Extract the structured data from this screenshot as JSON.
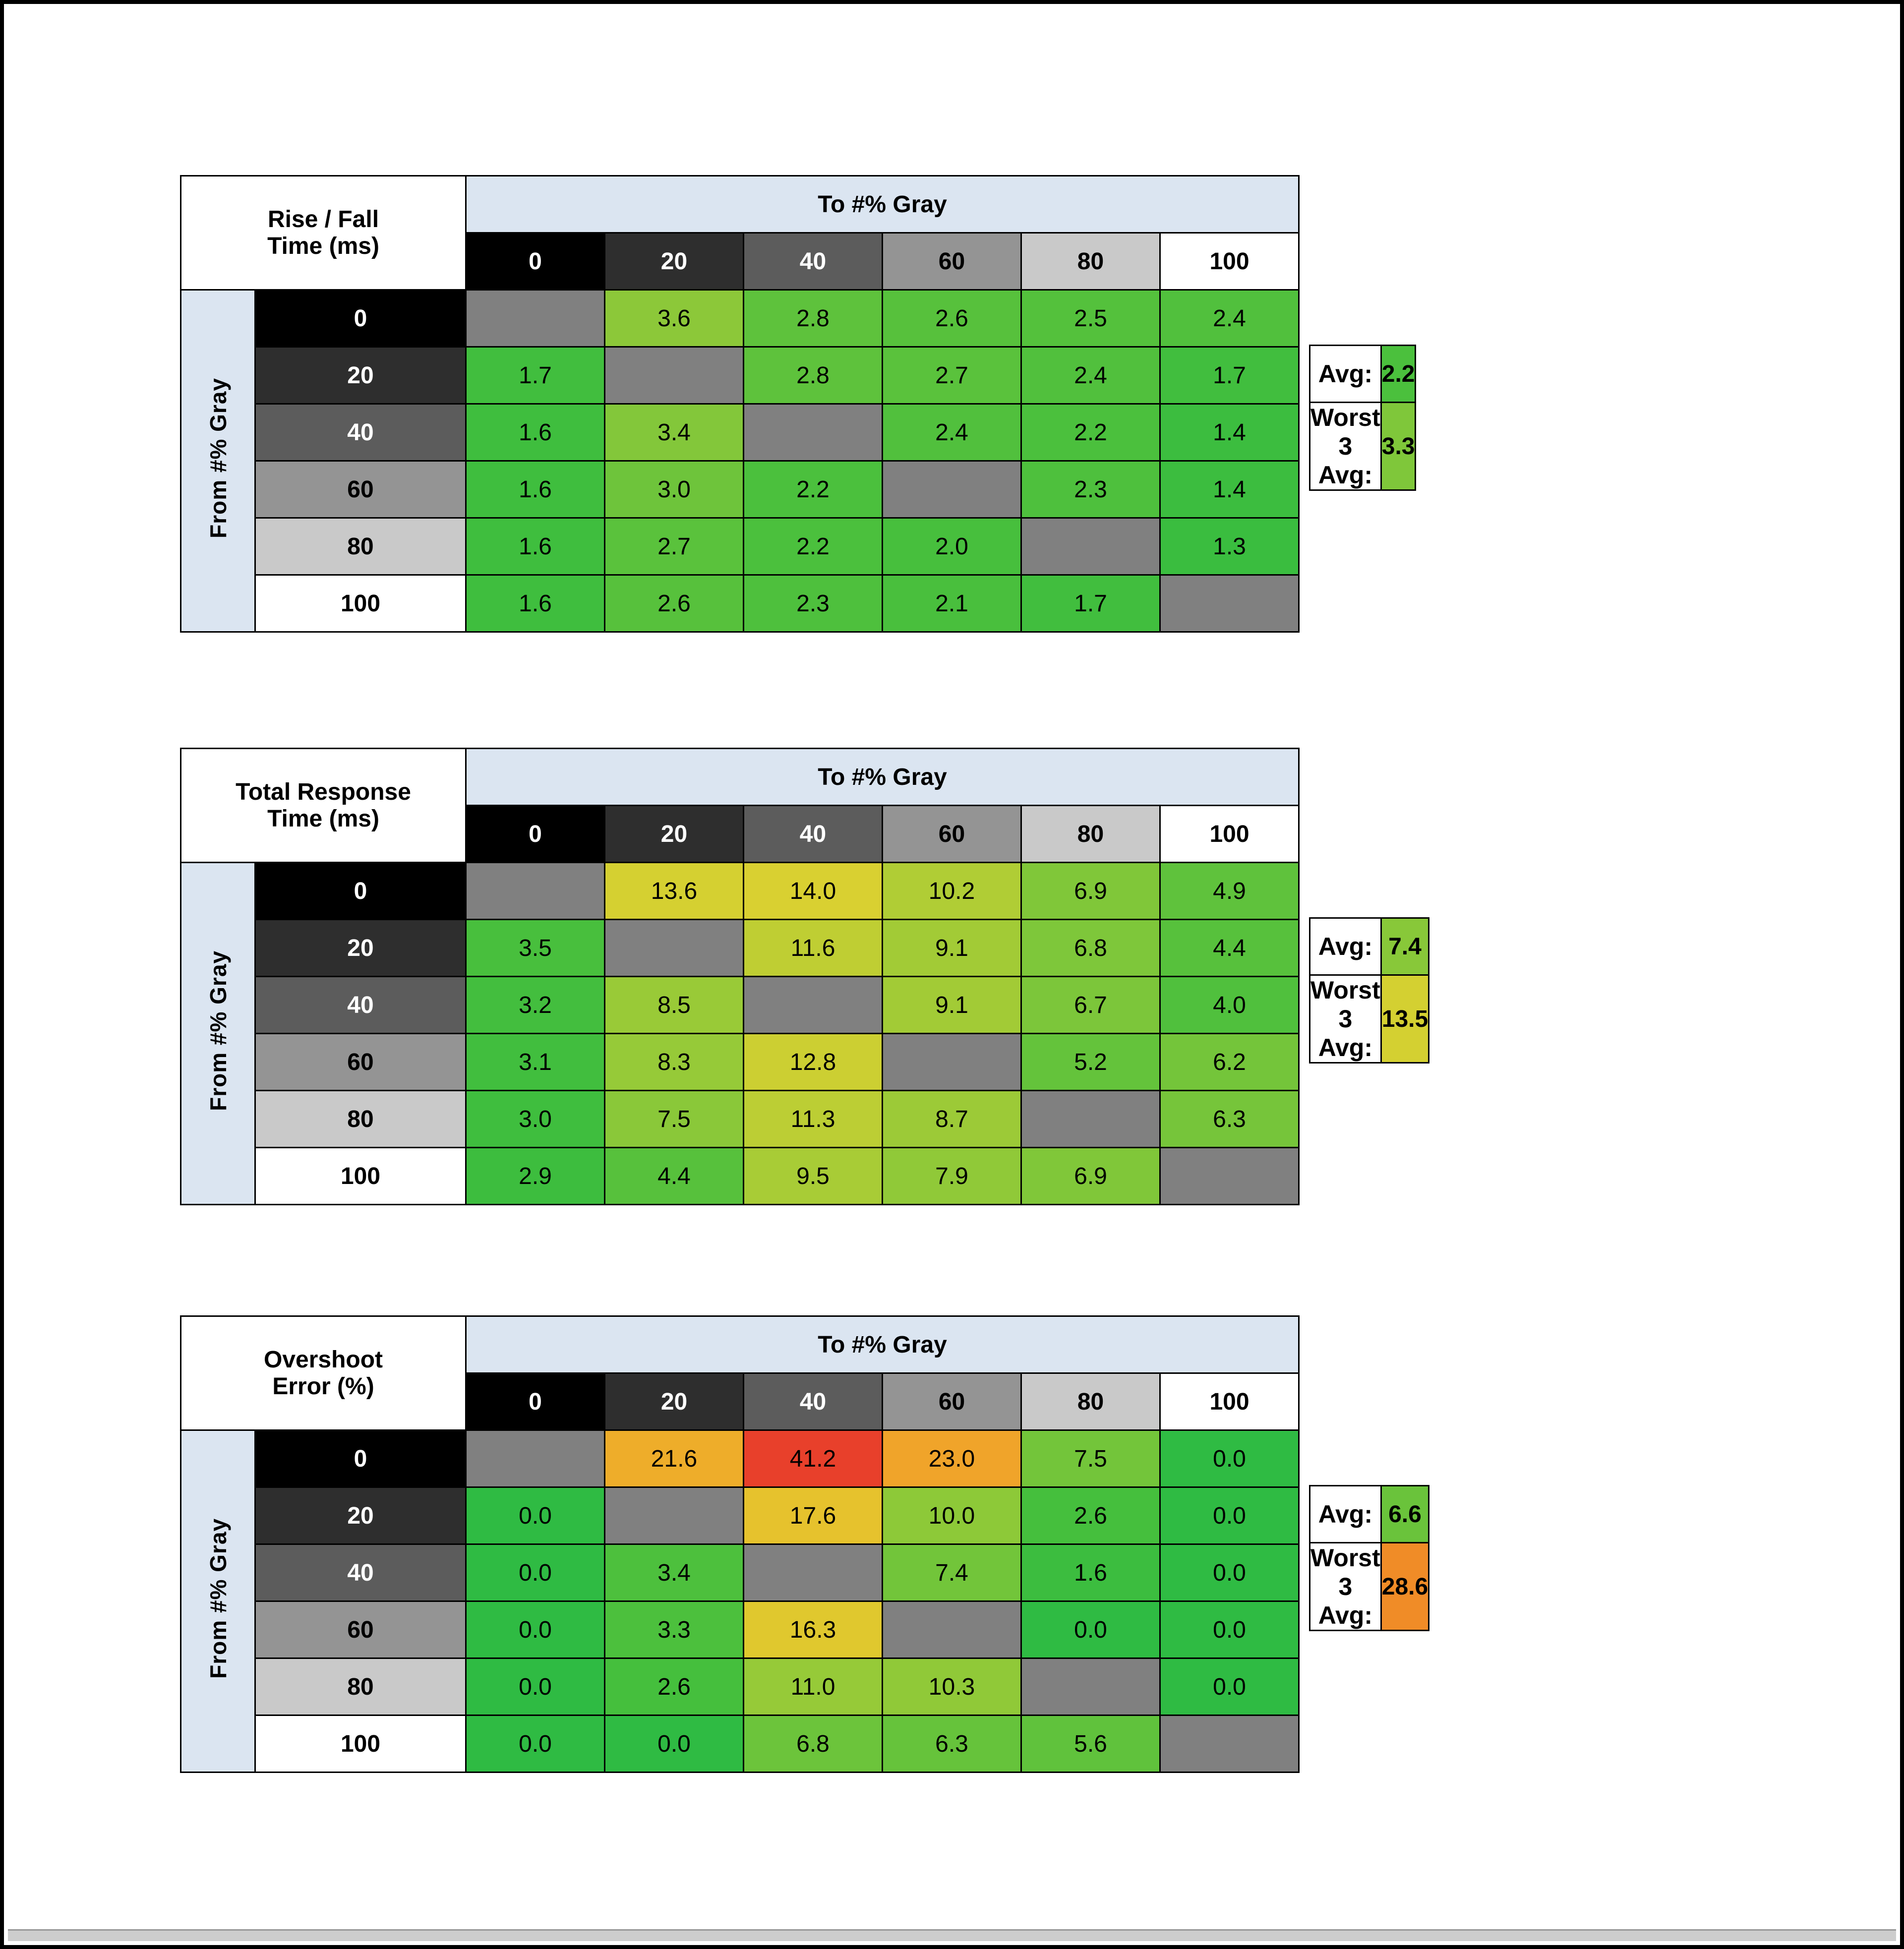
{
  "page": {
    "background": "#ffffff",
    "border_color": "#000000"
  },
  "colors": {
    "diagonal_cell": "#808080",
    "header_strip": "#dbe5f1"
  },
  "gray_headers": {
    "0": {
      "bg": "#000000",
      "fg": "#ffffff"
    },
    "20": {
      "bg": "#2e2e2e",
      "fg": "#ffffff"
    },
    "40": {
      "bg": "#5c5c5c",
      "fg": "#ffffff"
    },
    "60": {
      "bg": "#949494",
      "fg": "#000000"
    },
    "80": {
      "bg": "#c9c9c9",
      "fg": "#000000"
    },
    "100": {
      "bg": "#ffffff",
      "fg": "#000000"
    }
  },
  "scrollbar": {
    "track": "#cdcdcd",
    "edge": "#999999"
  },
  "tables": [
    {
      "id": "rise-fall-time",
      "title_line1": "Rise / Fall",
      "title_line2": "Time (ms)",
      "col_group_label": "To #% Gray",
      "row_group_label": "From #% Gray",
      "col_headers": [
        "0",
        "20",
        "40",
        "60",
        "80",
        "100"
      ],
      "row_headers": [
        "0",
        "20",
        "40",
        "60",
        "80",
        "100"
      ],
      "rows": [
        [
          null,
          {
            "v": "3.6",
            "c": "#8cc839"
          },
          {
            "v": "2.8",
            "c": "#5ec23c"
          },
          {
            "v": "2.6",
            "c": "#57c13c"
          },
          {
            "v": "2.5",
            "c": "#54c13c"
          },
          {
            "v": "2.4",
            "c": "#51c03d"
          }
        ],
        [
          {
            "v": "1.7",
            "c": "#41be3e"
          },
          null,
          {
            "v": "2.8",
            "c": "#5ec23c"
          },
          {
            "v": "2.7",
            "c": "#5ac23c"
          },
          {
            "v": "2.4",
            "c": "#51c03d"
          },
          {
            "v": "1.7",
            "c": "#41be3e"
          }
        ],
        [
          {
            "v": "1.6",
            "c": "#3fbe3e"
          },
          {
            "v": "3.4",
            "c": "#83c73a"
          },
          null,
          {
            "v": "2.4",
            "c": "#51c03d"
          },
          {
            "v": "2.2",
            "c": "#4bc03d"
          },
          {
            "v": "1.4",
            "c": "#3cbd3f"
          }
        ],
        [
          {
            "v": "1.6",
            "c": "#3fbe3e"
          },
          {
            "v": "3.0",
            "c": "#6ec43b"
          },
          {
            "v": "2.2",
            "c": "#4bc03d"
          },
          null,
          {
            "v": "2.3",
            "c": "#4ec03d"
          },
          {
            "v": "1.4",
            "c": "#3cbd3f"
          }
        ],
        [
          {
            "v": "1.6",
            "c": "#3fbe3e"
          },
          {
            "v": "2.7",
            "c": "#5ac23c"
          },
          {
            "v": "2.2",
            "c": "#4bc03d"
          },
          {
            "v": "2.0",
            "c": "#47bf3d"
          },
          null,
          {
            "v": "1.3",
            "c": "#3abd3f"
          }
        ],
        [
          {
            "v": "1.6",
            "c": "#3fbe3e"
          },
          {
            "v": "2.6",
            "c": "#57c13c"
          },
          {
            "v": "2.3",
            "c": "#4ec03d"
          },
          {
            "v": "2.1",
            "c": "#49bf3d"
          },
          {
            "v": "1.7",
            "c": "#41be3e"
          },
          null
        ]
      ],
      "avg": {
        "label": "Avg:",
        "value": "2.2",
        "color": "#4bc03d"
      },
      "worst": {
        "label": "Worst 3 Avg:",
        "value": "3.3",
        "color": "#7fc73a"
      }
    },
    {
      "id": "total-response-time",
      "title_line1": "Total Response",
      "title_line2": "Time (ms)",
      "col_group_label": "To #% Gray",
      "row_group_label": "From #% Gray",
      "col_headers": [
        "0",
        "20",
        "40",
        "60",
        "80",
        "100"
      ],
      "row_headers": [
        "0",
        "20",
        "40",
        "60",
        "80",
        "100"
      ],
      "rows": [
        [
          null,
          {
            "v": "13.6",
            "c": "#d5d031"
          },
          {
            "v": "14.0",
            "c": "#d9d031"
          },
          {
            "v": "10.2",
            "c": "#b0cd35"
          },
          {
            "v": "6.9",
            "c": "#80c739"
          },
          {
            "v": "4.9",
            "c": "#5fc23c"
          }
        ],
        [
          {
            "v": "3.5",
            "c": "#48bf3d"
          },
          null,
          {
            "v": "11.6",
            "c": "#bfce33"
          },
          {
            "v": "9.1",
            "c": "#a2cb36"
          },
          {
            "v": "6.8",
            "c": "#7ec73a"
          },
          {
            "v": "4.4",
            "c": "#57c13c"
          }
        ],
        [
          {
            "v": "3.2",
            "c": "#43be3e"
          },
          {
            "v": "8.5",
            "c": "#99ca37"
          },
          null,
          {
            "v": "9.1",
            "c": "#a2cb36"
          },
          {
            "v": "6.7",
            "c": "#7cc63a"
          },
          {
            "v": "4.0",
            "c": "#50c03d"
          }
        ],
        [
          {
            "v": "3.1",
            "c": "#41be3e"
          },
          {
            "v": "8.3",
            "c": "#96ca38"
          },
          {
            "v": "12.8",
            "c": "#cccf32"
          },
          null,
          {
            "v": "5.2",
            "c": "#64c33b"
          },
          {
            "v": "6.2",
            "c": "#74c53a"
          }
        ],
        [
          {
            "v": "3.0",
            "c": "#3fbe3e"
          },
          {
            "v": "7.5",
            "c": "#8ac839"
          },
          {
            "v": "11.3",
            "c": "#bcce34"
          },
          {
            "v": "8.7",
            "c": "#9cca37"
          },
          null,
          {
            "v": "6.3",
            "c": "#76c53a"
          }
        ],
        [
          {
            "v": "2.9",
            "c": "#3dbd3e"
          },
          {
            "v": "4.4",
            "c": "#57c13c"
          },
          {
            "v": "9.5",
            "c": "#a8cc36"
          },
          {
            "v": "7.9",
            "c": "#90c938"
          },
          {
            "v": "6.9",
            "c": "#80c739"
          },
          null
        ]
      ],
      "avg": {
        "label": "Avg:",
        "value": "7.4",
        "color": "#88c839"
      },
      "worst": {
        "label": "Worst 3 Avg:",
        "value": "13.5",
        "color": "#d4d031"
      }
    },
    {
      "id": "overshoot-error",
      "title_line1": "Overshoot",
      "title_line2": "Error (%)",
      "col_group_label": "To #% Gray",
      "row_group_label": "From #% Gray",
      "col_headers": [
        "0",
        "20",
        "40",
        "60",
        "80",
        "100"
      ],
      "row_headers": [
        "0",
        "20",
        "40",
        "60",
        "80",
        "100"
      ],
      "rows": [
        [
          null,
          {
            "v": "21.6",
            "c": "#eead2a"
          },
          {
            "v": "41.2",
            "c": "#e8402b"
          },
          {
            "v": "23.0",
            "c": "#f0a42a"
          },
          {
            "v": "7.5",
            "c": "#73c53a"
          },
          {
            "v": "0.0",
            "c": "#2fbb43"
          }
        ],
        [
          {
            "v": "0.0",
            "c": "#2fbb43"
          },
          null,
          {
            "v": "17.6",
            "c": "#e6c22d"
          },
          {
            "v": "10.0",
            "c": "#8dc938"
          },
          {
            "v": "2.6",
            "c": "#45bf3d"
          },
          {
            "v": "0.0",
            "c": "#2fbb43"
          }
        ],
        [
          {
            "v": "0.0",
            "c": "#2fbb43"
          },
          {
            "v": "3.4",
            "c": "#4dc03d"
          },
          null,
          {
            "v": "7.4",
            "c": "#72c53a"
          },
          {
            "v": "1.6",
            "c": "#3cbd3f"
          },
          {
            "v": "0.0",
            "c": "#2fbb43"
          }
        ],
        [
          {
            "v": "0.0",
            "c": "#2fbb43"
          },
          {
            "v": "3.3",
            "c": "#4cc03d"
          },
          {
            "v": "16.3",
            "c": "#e0c82e"
          },
          null,
          {
            "v": "0.0",
            "c": "#2fbb43"
          },
          {
            "v": "0.0",
            "c": "#2fbb43"
          }
        ],
        [
          {
            "v": "0.0",
            "c": "#2fbb43"
          },
          {
            "v": "2.6",
            "c": "#45bf3d"
          },
          {
            "v": "11.0",
            "c": "#96ca38"
          },
          {
            "v": "10.3",
            "c": "#90c938"
          },
          null,
          {
            "v": "0.0",
            "c": "#2fbb43"
          }
        ],
        [
          {
            "v": "0.0",
            "c": "#2fbb43"
          },
          {
            "v": "0.0",
            "c": "#2fbb43"
          },
          {
            "v": "6.8",
            "c": "#6cc43b"
          },
          {
            "v": "6.3",
            "c": "#66c33b"
          },
          {
            "v": "5.6",
            "c": "#60c23c"
          },
          null
        ]
      ],
      "avg": {
        "label": "Avg:",
        "value": "6.6",
        "color": "#6ac33b"
      },
      "worst": {
        "label": "Worst 3 Avg:",
        "value": "28.6",
        "color": "#f08c27"
      }
    }
  ],
  "chart_data": [
    {
      "type": "heatmap",
      "title": "Rise / Fall Time (ms)",
      "x_label": "To #% Gray",
      "y_label": "From #% Gray",
      "x": [
        0,
        20,
        40,
        60,
        80,
        100
      ],
      "y": [
        0,
        20,
        40,
        60,
        80,
        100
      ],
      "values": [
        [
          null,
          3.6,
          2.8,
          2.6,
          2.5,
          2.4
        ],
        [
          1.7,
          null,
          2.8,
          2.7,
          2.4,
          1.7
        ],
        [
          1.6,
          3.4,
          null,
          2.4,
          2.2,
          1.4
        ],
        [
          1.6,
          3.0,
          2.2,
          null,
          2.3,
          1.4
        ],
        [
          1.6,
          2.7,
          2.2,
          2.0,
          null,
          1.3
        ],
        [
          1.6,
          2.6,
          2.3,
          2.1,
          1.7,
          null
        ]
      ],
      "avg": 2.2,
      "worst_3_avg": 3.3
    },
    {
      "type": "heatmap",
      "title": "Total Response Time (ms)",
      "x_label": "To #% Gray",
      "y_label": "From #% Gray",
      "x": [
        0,
        20,
        40,
        60,
        80,
        100
      ],
      "y": [
        0,
        20,
        40,
        60,
        80,
        100
      ],
      "values": [
        [
          null,
          13.6,
          14.0,
          10.2,
          6.9,
          4.9
        ],
        [
          3.5,
          null,
          11.6,
          9.1,
          6.8,
          4.4
        ],
        [
          3.2,
          8.5,
          null,
          9.1,
          6.7,
          4.0
        ],
        [
          3.1,
          8.3,
          12.8,
          null,
          5.2,
          6.2
        ],
        [
          3.0,
          7.5,
          11.3,
          8.7,
          null,
          6.3
        ],
        [
          2.9,
          4.4,
          9.5,
          7.9,
          6.9,
          null
        ]
      ],
      "avg": 7.4,
      "worst_3_avg": 13.5
    },
    {
      "type": "heatmap",
      "title": "Overshoot Error (%)",
      "x_label": "To #% Gray",
      "y_label": "From #% Gray",
      "x": [
        0,
        20,
        40,
        60,
        80,
        100
      ],
      "y": [
        0,
        20,
        40,
        60,
        80,
        100
      ],
      "values": [
        [
          null,
          21.6,
          41.2,
          23.0,
          7.5,
          0.0
        ],
        [
          0.0,
          null,
          17.6,
          10.0,
          2.6,
          0.0
        ],
        [
          0.0,
          3.4,
          null,
          7.4,
          1.6,
          0.0
        ],
        [
          0.0,
          3.3,
          16.3,
          null,
          0.0,
          0.0
        ],
        [
          0.0,
          2.6,
          11.0,
          10.3,
          null,
          0.0
        ],
        [
          0.0,
          0.0,
          6.8,
          6.3,
          5.6,
          null
        ]
      ],
      "avg": 6.6,
      "worst_3_avg": 28.6
    }
  ]
}
